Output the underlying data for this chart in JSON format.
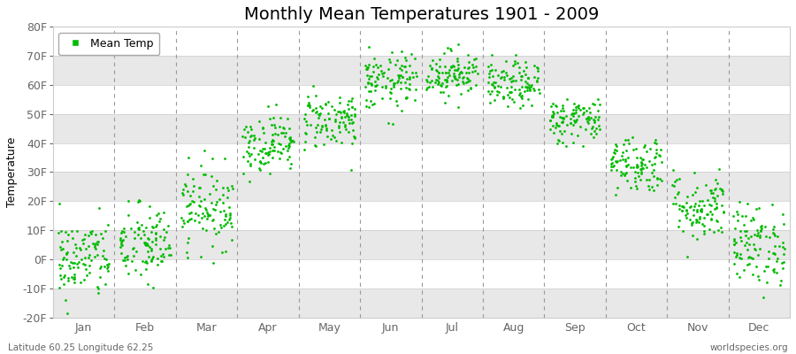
{
  "title": "Monthly Mean Temperatures 1901 - 2009",
  "ylabel": "Temperature",
  "xlabel": "",
  "footnote_left": "Latitude 60.25 Longitude 62.25",
  "footnote_right": "worldspecies.org",
  "legend_label": "Mean Temp",
  "dot_color": "#00bb00",
  "background_color": "#ffffff",
  "stripe_color": "#e8e8e8",
  "ylim": [
    -20,
    80
  ],
  "yticks": [
    -20,
    -10,
    0,
    10,
    20,
    30,
    40,
    50,
    60,
    70,
    80
  ],
  "ytick_labels": [
    "-20F",
    "-10F",
    "0F",
    "10F",
    "20F",
    "30F",
    "40F",
    "50F",
    "60F",
    "70F",
    "80F"
  ],
  "months": [
    "Jan",
    "Feb",
    "Mar",
    "Apr",
    "May",
    "Jun",
    "Jul",
    "Aug",
    "Sep",
    "Oct",
    "Nov",
    "Dec"
  ],
  "monthly_mean_F": [
    0,
    5,
    18,
    40,
    48,
    61,
    64,
    60,
    48,
    33,
    18,
    5
  ],
  "monthly_std_F": [
    7,
    7,
    7,
    5,
    5,
    5,
    4,
    4,
    4,
    5,
    6,
    7
  ],
  "n_years": 109,
  "seed": 42,
  "title_fontsize": 14,
  "axis_fontsize": 9,
  "tick_fontsize": 9,
  "marker_size": 4
}
